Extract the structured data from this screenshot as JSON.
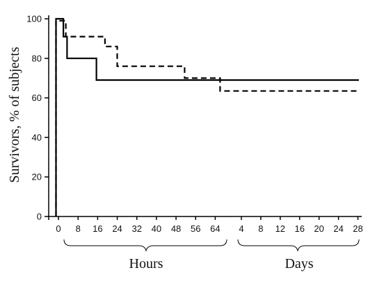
{
  "chart_data": {
    "type": "line",
    "title": "",
    "ylabel": "Survivors, % of subjects",
    "ylim": [
      0,
      100
    ],
    "y_ticks": [
      0,
      20,
      40,
      60,
      80,
      100
    ],
    "x_segments": [
      {
        "label": "Hours",
        "unit": "h",
        "ticks": [
          "0",
          "8",
          "16",
          "24",
          "32",
          "40",
          "48",
          "56",
          "64"
        ],
        "range": [
          -2,
          69
        ]
      },
      {
        "label": "Days",
        "unit": "d",
        "ticks": [
          "4",
          "8",
          "12",
          "16",
          "20",
          "24",
          "28"
        ],
        "range": [
          3,
          28.5
        ]
      }
    ],
    "grid": false,
    "legend": "none",
    "series": [
      {
        "style": "solid",
        "color": "#000000",
        "points": [
          {
            "seg": 0,
            "x": -1,
            "y": 0
          },
          {
            "seg": 0,
            "x": -1,
            "y": 100
          },
          {
            "seg": 0,
            "x": 2,
            "y": 100
          },
          {
            "seg": 0,
            "x": 2,
            "y": 91
          },
          {
            "seg": 0,
            "x": 3.5,
            "y": 91
          },
          {
            "seg": 0,
            "x": 3.5,
            "y": 80
          },
          {
            "seg": 0,
            "x": 15.5,
            "y": 80
          },
          {
            "seg": 0,
            "x": 15.5,
            "y": 69
          },
          {
            "seg": 1,
            "x": 28.2,
            "y": 69
          }
        ]
      },
      {
        "style": "dashed",
        "color": "#000000",
        "points": [
          {
            "seg": 0,
            "x": -1,
            "y": 0
          },
          {
            "seg": 0,
            "x": -1,
            "y": 99
          },
          {
            "seg": 0,
            "x": 3,
            "y": 99
          },
          {
            "seg": 0,
            "x": 3,
            "y": 91
          },
          {
            "seg": 0,
            "x": 19,
            "y": 91
          },
          {
            "seg": 0,
            "x": 19,
            "y": 86
          },
          {
            "seg": 0,
            "x": 24,
            "y": 86
          },
          {
            "seg": 0,
            "x": 24,
            "y": 76
          },
          {
            "seg": 0,
            "x": 51.5,
            "y": 76
          },
          {
            "seg": 0,
            "x": 51.5,
            "y": 70
          },
          {
            "seg": 0,
            "x": 66,
            "y": 70
          },
          {
            "seg": 0,
            "x": 66,
            "y": 63.5
          },
          {
            "seg": 1,
            "x": 28.2,
            "y": 63.5
          }
        ]
      }
    ]
  }
}
